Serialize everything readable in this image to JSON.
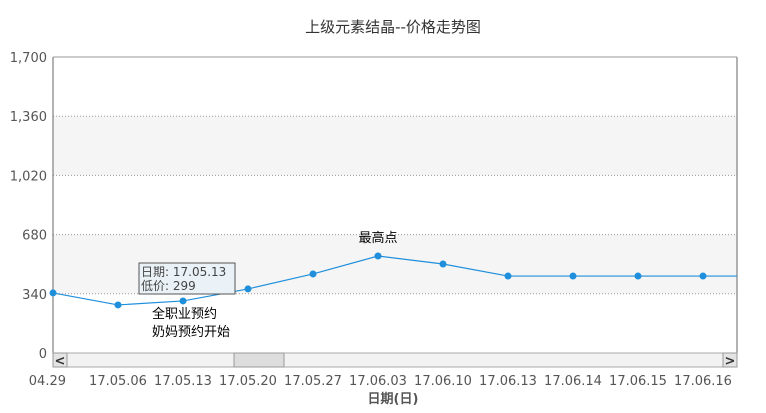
{
  "chart_data": {
    "type": "line",
    "title": "上级元素结晶--价格走势图",
    "xlabel": "日期(日)",
    "ylabel": "",
    "ylim": [
      0,
      1700
    ],
    "yticks": [
      "0",
      "340",
      "680",
      "1,020",
      "1,360",
      "1,700"
    ],
    "ytick_values": [
      0,
      340,
      680,
      1020,
      1360,
      1700
    ],
    "grid": true,
    "categories": [
      "17.04.29",
      "17.05.06",
      "17.05.13",
      "17.05.20",
      "17.05.27",
      "17.06.03",
      "17.06.10",
      "17.06.13",
      "17.06.14",
      "17.06.15",
      "17.06.16"
    ],
    "xtick_labels": [
      "04.29",
      "17.05.06",
      "17.05.13",
      "17.05.20",
      "17.05.27",
      "17.06.03",
      "17.06.10",
      "17.06.13",
      "17.06.14",
      "17.06.15",
      "17.06.16"
    ],
    "series": [
      {
        "values": [
          345,
          276,
          299,
          368,
          454,
          557,
          511,
          442,
          442,
          442,
          442
        ]
      }
    ],
    "line_color": "#1f8fdc",
    "annotations": [
      {
        "category": "17.05.13",
        "lines": [
          "全职业预约",
          "奶妈预约开始"
        ]
      },
      {
        "category": "17.06.03",
        "lines": [
          "最高点"
        ]
      }
    ],
    "tooltip": {
      "line1": "日期: 17.05.13",
      "line2": "低价: 299"
    },
    "scrollbar": {
      "left": "<",
      "right": ">"
    }
  }
}
